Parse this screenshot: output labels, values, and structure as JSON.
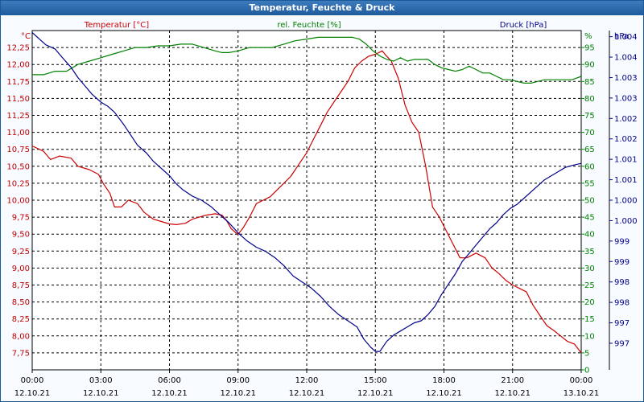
{
  "window": {
    "title": "Temperatur, Feuchte & Druck"
  },
  "chart_data": {
    "type": "line",
    "title": "Temperatur, Feuchte & Druck",
    "x_unit": "hours since 12.10.21 00:00",
    "xlim": [
      0,
      24
    ],
    "x_ticks": [
      {
        "time": "00:00",
        "date": "12.10.21",
        "h": 0
      },
      {
        "time": "03:00",
        "date": "12.10.21",
        "h": 3
      },
      {
        "time": "06:00",
        "date": "12.10.21",
        "h": 6
      },
      {
        "time": "09:00",
        "date": "12.10.21",
        "h": 9
      },
      {
        "time": "12:00",
        "date": "12.10.21",
        "h": 12
      },
      {
        "time": "15:00",
        "date": "12.10.21",
        "h": 15
      },
      {
        "time": "18:00",
        "date": "12.10.21",
        "h": 18
      },
      {
        "time": "21:00",
        "date": "12.10.21",
        "h": 21
      },
      {
        "time": "00:00",
        "date": "13.10.21",
        "h": 24
      }
    ],
    "axes": {
      "left": {
        "unit": "°C",
        "ylim": [
          7.5,
          12.5
        ],
        "color": "#c00000",
        "ticks": [
          "7,75",
          "8,00",
          "8,25",
          "8,50",
          "8,75",
          "9,00",
          "9,25",
          "9,50",
          "9,75",
          "10,00",
          "10,25",
          "10,50",
          "10,75",
          "11,00",
          "11,25",
          "11,50",
          "11,75",
          "12,00",
          "12,25"
        ],
        "tick_values": [
          7.75,
          8.0,
          8.25,
          8.5,
          8.75,
          9.0,
          9.25,
          9.5,
          9.75,
          10.0,
          10.25,
          10.5,
          10.75,
          11.0,
          11.25,
          11.5,
          11.75,
          12.0,
          12.25
        ]
      },
      "middle": {
        "unit": "%",
        "ylim": [
          0,
          100
        ],
        "color": "#008000",
        "ticks": [
          "0",
          "5",
          "10",
          "15",
          "20",
          "25",
          "30",
          "35",
          "40",
          "45",
          "50",
          "55",
          "60",
          "65",
          "70",
          "75",
          "80",
          "85",
          "90",
          "95"
        ],
        "tick_values": [
          0,
          5,
          10,
          15,
          20,
          25,
          30,
          35,
          40,
          45,
          50,
          55,
          60,
          65,
          70,
          75,
          80,
          85,
          90,
          95
        ]
      },
      "right": {
        "unit": "hPa",
        "ylim": [
          996.1,
          1004.4
        ],
        "color": "#00008b",
        "ticks": [
          "997",
          "997",
          "998",
          "998",
          "999",
          "999",
          "1.000",
          "1.000",
          "1.001",
          "1.001",
          "1.002",
          "1.002",
          "1.003",
          "1.003",
          "1.004",
          "1.004"
        ],
        "tick_values": [
          996.75,
          997.25,
          997.75,
          998.25,
          998.75,
          999.25,
          999.75,
          1000.25,
          1000.75,
          1001.25,
          1001.75,
          1002.25,
          1002.75,
          1003.25,
          1003.75,
          1004.25
        ]
      }
    },
    "series": [
      {
        "name": "Temperatur [°C]",
        "axis": "left",
        "color": "#cc0000",
        "x": [
          0,
          0.5,
          0.8,
          1.2,
          1.7,
          2.0,
          2.5,
          2.9,
          3.1,
          3.4,
          3.6,
          3.9,
          4.2,
          4.6,
          4.9,
          5.3,
          5.7,
          6.0,
          6.3,
          6.7,
          7.0,
          7.3,
          7.6,
          8.0,
          8.3,
          8.5,
          8.7,
          8.9,
          9.0,
          9.2,
          9.5,
          9.8,
          10.1,
          10.4,
          10.7,
          11.0,
          11.3,
          11.6,
          12.0,
          12.3,
          12.6,
          12.9,
          13.2,
          13.5,
          13.8,
          14.1,
          14.4,
          14.7,
          15.0,
          15.3,
          15.5,
          15.7,
          16.0,
          16.3,
          16.6,
          16.9,
          17.2,
          17.5,
          17.8,
          18.1,
          18.4,
          18.7,
          19.0,
          19.4,
          19.8,
          20.1,
          20.4,
          20.7,
          21.0,
          21.3,
          21.6,
          21.9,
          22.2,
          22.5,
          22.8,
          23.1,
          23.4,
          23.7,
          24.0
        ],
        "values": [
          10.8,
          10.72,
          10.6,
          10.65,
          10.62,
          10.5,
          10.45,
          10.38,
          10.25,
          10.1,
          9.9,
          9.9,
          10.0,
          9.95,
          9.82,
          9.72,
          9.68,
          9.65,
          9.64,
          9.66,
          9.72,
          9.75,
          9.78,
          9.8,
          9.78,
          9.7,
          9.58,
          9.52,
          9.5,
          9.58,
          9.75,
          9.95,
          10.0,
          10.05,
          10.15,
          10.25,
          10.35,
          10.5,
          10.7,
          10.9,
          11.1,
          11.3,
          11.45,
          11.6,
          11.75,
          11.95,
          12.05,
          12.12,
          12.15,
          12.2,
          12.12,
          12.05,
          11.8,
          11.4,
          11.15,
          11.0,
          10.5,
          9.9,
          9.75,
          9.55,
          9.35,
          9.15,
          9.15,
          9.22,
          9.15,
          9.0,
          8.92,
          8.82,
          8.75,
          8.7,
          8.65,
          8.45,
          8.3,
          8.15,
          8.08,
          8.0,
          7.92,
          7.88,
          7.75
        ]
      },
      {
        "name": "rel. Feuchte [%]",
        "axis": "middle",
        "color": "#008000",
        "x": [
          0,
          0.5,
          1.0,
          1.5,
          2.0,
          2.5,
          3.0,
          3.5,
          4.0,
          4.5,
          5.0,
          5.5,
          6.0,
          6.5,
          7.0,
          7.5,
          8.0,
          8.3,
          8.6,
          9.0,
          9.5,
          10.0,
          10.5,
          11.0,
          11.5,
          12.0,
          12.5,
          13.0,
          13.5,
          14.0,
          14.3,
          14.6,
          14.9,
          15.2,
          15.5,
          15.8,
          16.1,
          16.4,
          16.7,
          17.0,
          17.3,
          17.6,
          17.9,
          18.2,
          18.5,
          18.8,
          19.1,
          19.4,
          19.7,
          20.0,
          20.3,
          20.6,
          20.9,
          21.2,
          21.5,
          21.8,
          22.1,
          22.4,
          22.7,
          23.0,
          23.3,
          23.6,
          24.0
        ],
        "values": [
          87,
          87,
          88,
          88,
          90,
          91,
          92,
          93,
          94,
          95,
          95,
          95.5,
          95.5,
          96,
          96,
          95,
          94,
          93.5,
          93.5,
          94,
          95,
          95,
          95,
          96,
          97,
          97.5,
          98,
          98,
          98,
          98,
          97.5,
          96,
          94,
          92.5,
          91.5,
          91,
          92,
          91,
          91.5,
          91.5,
          91.5,
          90,
          89,
          88.5,
          88,
          88.5,
          89.5,
          88.5,
          87.5,
          87.5,
          86.5,
          85.5,
          85.5,
          85,
          84.5,
          84.5,
          85,
          85.5,
          85.5,
          85.5,
          85.5,
          85.5,
          86.5
        ]
      },
      {
        "name": "Druck [hPa]",
        "axis": "right",
        "color": "#00008b",
        "x": [
          0,
          0.3,
          0.6,
          1.0,
          1.3,
          1.7,
          2.0,
          2.3,
          2.6,
          3.0,
          3.3,
          3.6,
          4.0,
          4.3,
          4.6,
          5.0,
          5.3,
          5.6,
          6.0,
          6.3,
          6.6,
          7.0,
          7.4,
          7.8,
          8.2,
          8.6,
          9.0,
          9.4,
          9.8,
          10.2,
          10.6,
          11.0,
          11.4,
          11.8,
          12.2,
          12.6,
          13.0,
          13.4,
          13.8,
          14.2,
          14.5,
          14.8,
          15.0,
          15.2,
          15.5,
          15.8,
          16.1,
          16.4,
          16.7,
          17.0,
          17.3,
          17.6,
          17.9,
          18.2,
          18.5,
          18.8,
          19.1,
          19.4,
          19.7,
          20.0,
          20.3,
          20.6,
          20.9,
          21.2,
          21.5,
          21.8,
          22.1,
          22.4,
          22.7,
          23.0,
          23.3,
          23.6,
          24.0
        ],
        "values": [
          1004.35,
          1004.2,
          1004.05,
          1003.95,
          1003.75,
          1003.5,
          1003.25,
          1003.05,
          1002.85,
          1002.65,
          1002.55,
          1002.4,
          1002.1,
          1001.85,
          1001.6,
          1001.4,
          1001.2,
          1001.05,
          1000.85,
          1000.65,
          1000.5,
          1000.35,
          1000.25,
          1000.1,
          999.9,
          999.7,
          999.45,
          999.25,
          999.1,
          999.0,
          998.85,
          998.65,
          998.4,
          998.25,
          998.1,
          997.9,
          997.65,
          997.45,
          997.3,
          997.15,
          996.85,
          996.65,
          996.55,
          996.55,
          996.8,
          996.95,
          997.05,
          997.15,
          997.25,
          997.3,
          997.45,
          997.65,
          997.95,
          998.2,
          998.45,
          998.75,
          998.95,
          999.15,
          999.35,
          999.55,
          999.7,
          999.9,
          1000.05,
          1000.15,
          1000.3,
          1000.45,
          1000.6,
          1000.75,
          1000.85,
          1000.95,
          1001.05,
          1001.1,
          1001.15
        ]
      }
    ]
  }
}
